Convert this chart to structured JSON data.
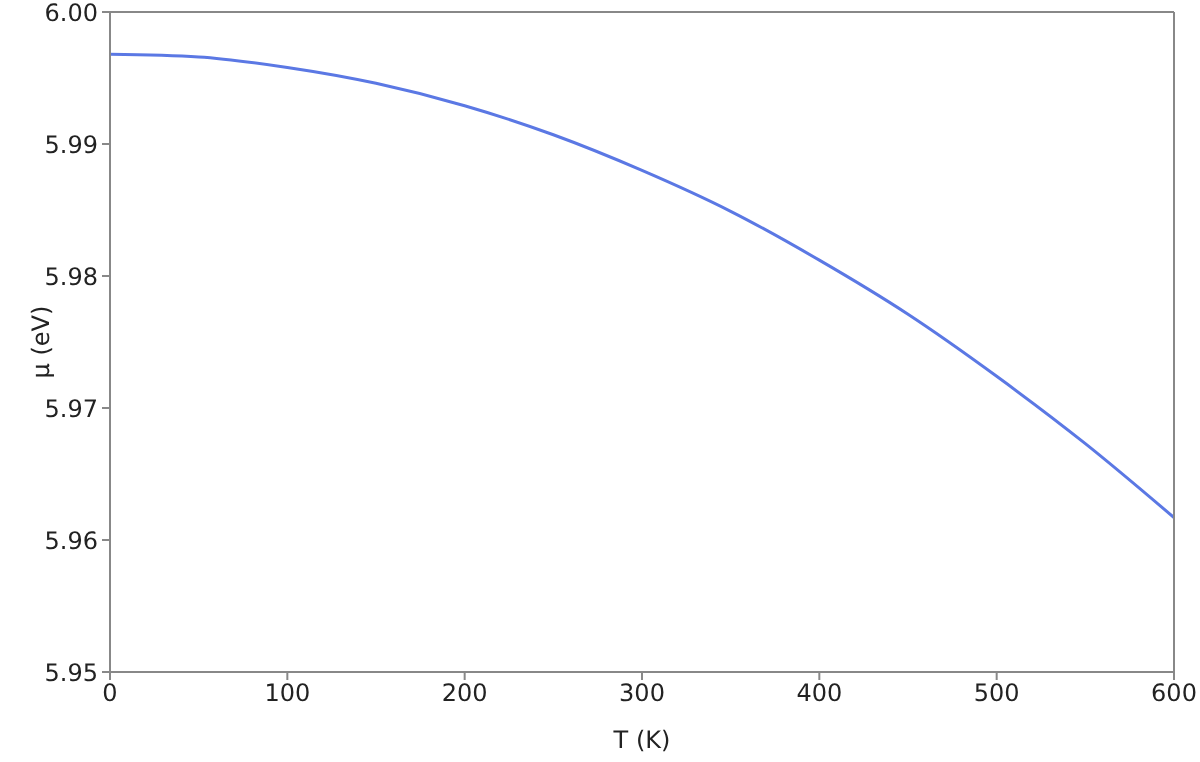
{
  "chart_data": {
    "type": "line",
    "xlabel": "T (K)",
    "ylabel": "μ (eV)",
    "x": [
      0,
      50,
      100,
      150,
      200,
      250,
      300,
      350,
      400,
      450,
      500,
      550,
      600
    ],
    "series": [
      {
        "color": "#5b78e4",
        "values": [
          5.9968,
          5.9966,
          5.9958,
          5.9946,
          5.9929,
          5.9907,
          5.988,
          5.9849,
          5.9812,
          5.9771,
          5.9724,
          5.9673,
          5.9617
        ]
      }
    ],
    "xlim": [
      0,
      600
    ],
    "xticks": [
      0,
      100,
      200,
      300,
      400,
      500,
      600
    ],
    "ylim": [
      5.95,
      6
    ],
    "yticks": [
      {
        "value": 5.95,
        "label": "5.95"
      },
      {
        "value": 5.96,
        "label": "5.96"
      },
      {
        "value": 5.97,
        "label": "5.97"
      },
      {
        "value": 5.98,
        "label": "5.98"
      },
      {
        "value": 5.99,
        "label": "5.99"
      },
      {
        "value": 6,
        "label": "6.00"
      }
    ],
    "grid": false,
    "marker": "none",
    "line_style": "solid"
  }
}
